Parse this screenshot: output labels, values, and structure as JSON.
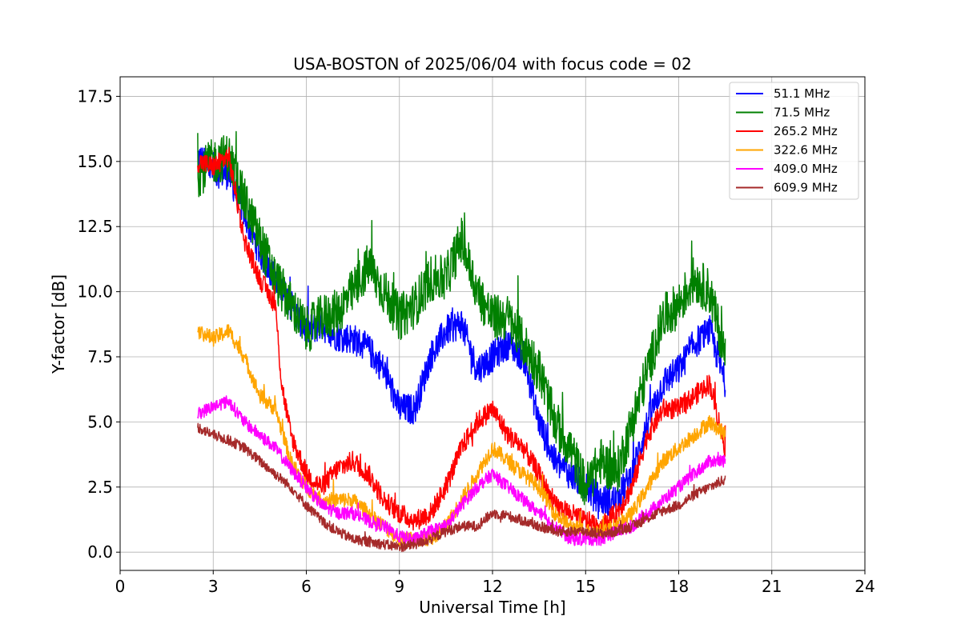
{
  "chart_data": {
    "type": "line",
    "title": "USA-BOSTON of 2025/06/04 with focus code = 02",
    "xlabel": "Universal Time [h]",
    "ylabel": "Y-factor [dB]",
    "xlim": [
      0,
      24
    ],
    "ylim": [
      -0.7,
      18.25
    ],
    "xticks": [
      0,
      3,
      6,
      9,
      12,
      15,
      18,
      21,
      24
    ],
    "xtick_labels": [
      "0",
      "3",
      "6",
      "9",
      "12",
      "15",
      "18",
      "21",
      "24"
    ],
    "yticks": [
      0.0,
      2.5,
      5.0,
      7.5,
      10.0,
      12.5,
      15.0,
      17.5
    ],
    "ytick_labels": [
      "0.0",
      "2.5",
      "5.0",
      "7.5",
      "10.0",
      "12.5",
      "15.0",
      "17.5"
    ],
    "grid": true,
    "legend_position": "top-right",
    "series": [
      {
        "name": " 51.1 MHz",
        "color": "#0000ff",
        "noise": 0.6,
        "x": [
          2.5,
          3.0,
          3.5,
          4.0,
          4.5,
          5.0,
          5.5,
          6.0,
          6.5,
          7.0,
          7.5,
          8.0,
          8.5,
          9.0,
          9.5,
          10.0,
          10.5,
          11.0,
          11.5,
          12.0,
          12.5,
          13.0,
          13.5,
          14.0,
          14.5,
          15.0,
          15.5,
          16.0,
          16.5,
          17.0,
          17.5,
          18.0,
          18.5,
          19.0,
          19.5
        ],
        "y": [
          15.2,
          14.6,
          14.5,
          13.0,
          11.5,
          10.5,
          9.5,
          8.5,
          8.7,
          8.3,
          8.2,
          7.8,
          7.0,
          5.5,
          5.5,
          7.5,
          8.5,
          8.8,
          7.0,
          7.5,
          8.0,
          7.5,
          5.0,
          3.5,
          3.0,
          2.5,
          2.0,
          2.0,
          3.0,
          5.0,
          6.5,
          7.0,
          8.0,
          8.5,
          6.5
        ]
      },
      {
        "name": " 71.5 MHz",
        "color": "#008000",
        "noise": 0.9,
        "x": [
          2.5,
          3.0,
          3.5,
          4.0,
          4.5,
          5.0,
          5.5,
          6.0,
          6.5,
          7.0,
          7.5,
          8.0,
          8.5,
          9.0,
          9.5,
          10.0,
          10.5,
          11.0,
          11.5,
          12.0,
          12.5,
          13.0,
          13.5,
          14.0,
          14.5,
          15.0,
          15.5,
          16.0,
          16.5,
          17.0,
          17.5,
          18.0,
          18.5,
          19.0,
          19.5
        ],
        "y": [
          14.5,
          15.0,
          15.2,
          13.5,
          12.0,
          10.5,
          9.5,
          8.5,
          9.0,
          9.2,
          10.0,
          11.0,
          10.0,
          9.0,
          9.5,
          10.5,
          10.5,
          12.0,
          10.0,
          9.0,
          9.0,
          8.0,
          7.0,
          5.0,
          4.0,
          2.5,
          3.5,
          3.0,
          5.0,
          7.0,
          9.0,
          9.5,
          10.5,
          10.0,
          7.5
        ]
      },
      {
        "name": " 265.2 MHz",
        "color": "#ff0000",
        "noise": 0.4,
        "x": [
          2.5,
          3.0,
          3.5,
          4.0,
          4.5,
          5.0,
          5.2,
          5.5,
          6.0,
          6.5,
          7.0,
          7.5,
          8.0,
          8.5,
          9.0,
          9.5,
          10.0,
          10.5,
          11.0,
          11.5,
          12.0,
          12.5,
          13.0,
          13.5,
          14.0,
          14.5,
          15.0,
          15.5,
          16.0,
          16.5,
          17.0,
          17.5,
          18.0,
          18.5,
          19.0,
          19.5
        ],
        "y": [
          15.0,
          14.8,
          15.2,
          12.0,
          10.5,
          9.5,
          6.5,
          4.5,
          3.0,
          2.5,
          3.2,
          3.5,
          3.0,
          2.0,
          1.5,
          1.2,
          1.5,
          2.5,
          4.0,
          5.0,
          5.5,
          4.5,
          4.0,
          3.0,
          1.8,
          1.5,
          1.2,
          1.0,
          1.5,
          2.5,
          4.5,
          5.5,
          5.5,
          6.0,
          6.5,
          4.0
        ]
      },
      {
        "name": " 322.6 MHz",
        "color": "#ffa500",
        "noise": 0.3,
        "x": [
          2.5,
          3.0,
          3.5,
          4.0,
          4.5,
          5.0,
          5.5,
          6.0,
          6.5,
          7.0,
          7.5,
          8.0,
          8.5,
          9.0,
          9.5,
          10.0,
          10.5,
          11.0,
          11.5,
          12.0,
          12.5,
          13.0,
          13.5,
          14.0,
          14.5,
          15.0,
          15.5,
          16.0,
          16.5,
          17.0,
          17.5,
          18.0,
          18.5,
          19.0,
          19.5
        ],
        "y": [
          8.5,
          8.2,
          8.5,
          7.5,
          6.0,
          5.5,
          3.5,
          2.5,
          2.0,
          2.0,
          2.0,
          1.5,
          1.0,
          0.5,
          0.5,
          0.5,
          1.0,
          2.0,
          3.0,
          4.0,
          3.5,
          3.0,
          2.5,
          1.5,
          1.0,
          0.8,
          0.8,
          1.0,
          1.5,
          2.5,
          3.5,
          4.0,
          4.5,
          5.0,
          4.5
        ]
      },
      {
        "name": " 409.0 MHz",
        "color": "#ff00ff",
        "noise": 0.25,
        "x": [
          2.5,
          3.0,
          3.5,
          4.0,
          4.5,
          5.0,
          5.5,
          6.0,
          6.5,
          7.0,
          7.5,
          8.0,
          8.5,
          9.0,
          9.5,
          10.0,
          10.5,
          11.0,
          11.5,
          12.0,
          12.5,
          13.0,
          13.5,
          14.0,
          14.5,
          15.0,
          15.5,
          16.0,
          16.5,
          17.0,
          17.5,
          18.0,
          18.5,
          19.0,
          19.5
        ],
        "y": [
          5.3,
          5.6,
          5.8,
          5.0,
          4.5,
          4.0,
          3.2,
          2.5,
          1.8,
          1.5,
          1.5,
          1.2,
          1.0,
          0.6,
          0.5,
          0.8,
          1.0,
          1.8,
          2.5,
          3.0,
          2.5,
          2.0,
          1.5,
          1.0,
          0.5,
          0.5,
          0.5,
          0.8,
          1.0,
          1.5,
          2.0,
          2.5,
          3.0,
          3.5,
          3.5
        ]
      },
      {
        "name": " 609.9 MHz",
        "color": "#a52a2a",
        "noise": 0.2,
        "x": [
          2.5,
          3.0,
          3.5,
          4.0,
          4.5,
          5.0,
          5.5,
          6.0,
          6.5,
          7.0,
          7.5,
          8.0,
          8.5,
          9.0,
          9.5,
          10.0,
          10.5,
          11.0,
          11.5,
          12.0,
          12.5,
          13.0,
          13.5,
          14.0,
          14.5,
          15.0,
          15.5,
          16.0,
          16.5,
          17.0,
          17.5,
          18.0,
          18.5,
          19.0,
          19.5
        ],
        "y": [
          4.8,
          4.5,
          4.3,
          4.0,
          3.5,
          3.0,
          2.5,
          1.8,
          1.2,
          0.8,
          0.5,
          0.4,
          0.3,
          0.2,
          0.3,
          0.5,
          0.8,
          1.0,
          1.0,
          1.5,
          1.4,
          1.2,
          1.0,
          0.8,
          0.8,
          0.8,
          0.7,
          0.8,
          1.0,
          1.3,
          1.6,
          1.8,
          2.2,
          2.5,
          2.8
        ]
      }
    ]
  }
}
